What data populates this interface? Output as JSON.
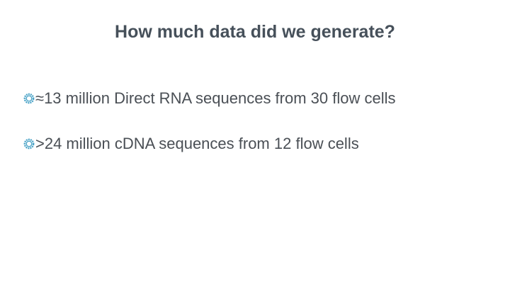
{
  "slide": {
    "title": "How much data did we generate?",
    "bullets": [
      {
        "icon": "gear-bullet-icon",
        "text": "≈13 million Direct RNA sequences from 30 flow cells"
      },
      {
        "icon": "gear-bullet-icon",
        "text": ">24 million cDNA sequences from 12 flow cells"
      }
    ]
  },
  "colors": {
    "title": "#46505a",
    "text": "#4a4f55",
    "bullet_icon": "#4aa3c7"
  }
}
